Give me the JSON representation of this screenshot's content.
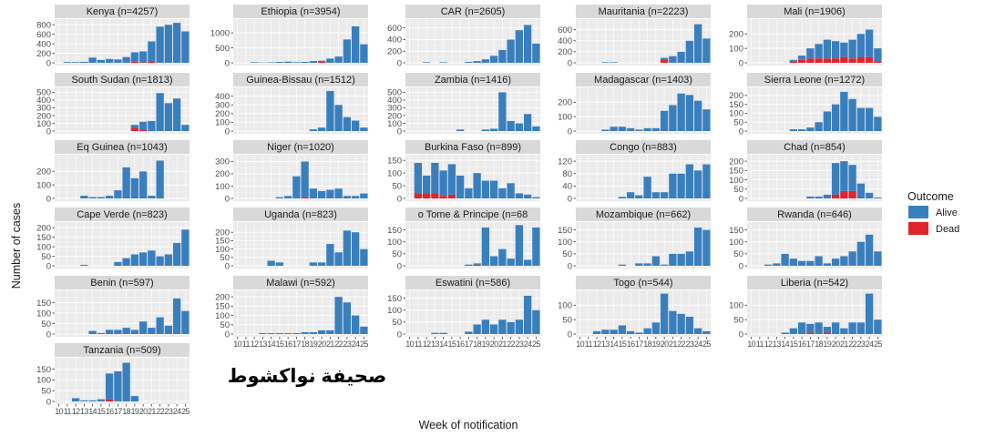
{
  "chart_data": {
    "type": "bar",
    "stacked": true,
    "xlabel": "Week of notification",
    "ylabel": "Number of cases",
    "legend": {
      "title": "Outcome",
      "placement": "right",
      "entries": [
        {
          "name": "Alive",
          "color": "#3a7fbd"
        },
        {
          "name": "Dead",
          "color": "#e0242b"
        }
      ]
    },
    "x_tick_labels": [
      "10",
      "11",
      "12",
      "13",
      "14",
      "15",
      "16",
      "17",
      "18",
      "19",
      "20",
      "21",
      "22",
      "23",
      "24",
      "25"
    ],
    "grid": true,
    "watermark": "صحيفة نواكشوط",
    "panels": [
      {
        "title": "Kenya (n=4257)",
        "yticks": [
          0,
          200,
          400,
          600,
          800
        ],
        "ymax": 880,
        "alive": [
          0,
          15,
          15,
          20,
          110,
          60,
          80,
          70,
          120,
          200,
          230,
          420,
          760,
          800,
          840,
          660
        ],
        "dead": [
          0,
          0,
          0,
          0,
          0,
          0,
          0,
          0,
          0,
          20,
          10,
          30,
          0,
          0,
          0,
          0
        ]
      },
      {
        "title": "Ethiopia (n=3954)",
        "yticks": [
          0,
          500,
          1000
        ],
        "ymax": 1400,
        "alive": [
          0,
          0,
          20,
          10,
          15,
          30,
          40,
          20,
          30,
          60,
          40,
          140,
          210,
          780,
          1220,
          620
        ],
        "dead": [
          0,
          0,
          0,
          0,
          0,
          0,
          0,
          0,
          0,
          0,
          30,
          0,
          0,
          0,
          0,
          0
        ]
      },
      {
        "title": "CAR (n=2605)",
        "yticks": [
          0,
          200,
          400,
          600
        ],
        "ymax": 720,
        "alive": [
          0,
          0,
          10,
          0,
          10,
          0,
          0,
          15,
          30,
          60,
          120,
          220,
          400,
          560,
          650,
          330
        ],
        "dead": [
          0,
          0,
          0,
          0,
          0,
          0,
          0,
          0,
          0,
          0,
          0,
          0,
          0,
          0,
          0,
          0
        ]
      },
      {
        "title": "Mauritania (n=2223)",
        "yticks": [
          0,
          200,
          400,
          600
        ],
        "ymax": 760,
        "alive": [
          0,
          0,
          0,
          10,
          10,
          0,
          0,
          0,
          0,
          0,
          30,
          120,
          200,
          400,
          700,
          440
        ],
        "dead": [
          0,
          0,
          0,
          0,
          0,
          0,
          0,
          0,
          0,
          0,
          60,
          0,
          0,
          0,
          0,
          0
        ]
      },
      {
        "title": "Mali (n=1906)",
        "yticks": [
          0,
          100,
          200
        ],
        "ymax": 290,
        "alive": [
          0,
          0,
          0,
          0,
          0,
          10,
          30,
          70,
          100,
          130,
          120,
          100,
          130,
          160,
          190,
          90
        ],
        "dead": [
          0,
          0,
          0,
          0,
          0,
          10,
          20,
          30,
          30,
          30,
          30,
          40,
          30,
          40,
          40,
          10
        ]
      },
      {
        "title": "South Sudan (n=1813)",
        "yticks": [
          0,
          100,
          200,
          300,
          400,
          500
        ],
        "ymax": 540,
        "alive": [
          0,
          0,
          0,
          0,
          0,
          0,
          0,
          0,
          0,
          40,
          100,
          130,
          490,
          360,
          420,
          80
        ],
        "dead": [
          0,
          0,
          0,
          0,
          0,
          0,
          0,
          0,
          0,
          40,
          20,
          0,
          0,
          0,
          0,
          0
        ]
      },
      {
        "title": "Guinea-Bissau (n=1512)",
        "yticks": [
          0,
          100,
          200,
          300,
          400
        ],
        "ymax": 480,
        "alive": [
          0,
          0,
          0,
          0,
          0,
          0,
          0,
          0,
          0,
          20,
          40,
          460,
          300,
          160,
          120,
          40
        ],
        "dead": [
          0,
          0,
          0,
          0,
          0,
          0,
          0,
          0,
          0,
          0,
          0,
          0,
          0,
          0,
          0,
          0
        ]
      },
      {
        "title": "Zambia (n=1416)",
        "yticks": [
          0,
          100,
          200,
          300,
          400,
          500
        ],
        "ymax": 540,
        "alive": [
          0,
          0,
          0,
          0,
          0,
          0,
          20,
          0,
          0,
          20,
          30,
          500,
          130,
          100,
          220,
          60
        ],
        "dead": [
          0,
          0,
          0,
          0,
          0,
          0,
          0,
          0,
          0,
          0,
          0,
          0,
          0,
          0,
          0,
          0
        ]
      },
      {
        "title": "Madagascar (n=1403)",
        "yticks": [
          0,
          100,
          200
        ],
        "ymax": 290,
        "alive": [
          0,
          0,
          0,
          10,
          30,
          30,
          20,
          10,
          20,
          20,
          140,
          180,
          260,
          250,
          210,
          150
        ],
        "dead": [
          0,
          0,
          0,
          0,
          0,
          0,
          0,
          0,
          0,
          0,
          0,
          0,
          0,
          0,
          0,
          0
        ]
      },
      {
        "title": "Sierra Leone (n=1272)",
        "yticks": [
          0,
          50,
          100,
          150,
          200
        ],
        "ymax": 235,
        "alive": [
          0,
          0,
          0,
          0,
          0,
          10,
          10,
          20,
          50,
          110,
          150,
          220,
          180,
          130,
          130,
          80
        ],
        "dead": [
          0,
          0,
          0,
          0,
          0,
          0,
          0,
          0,
          0,
          0,
          0,
          0,
          0,
          0,
          0,
          0
        ]
      },
      {
        "title": "Eq Guinea (n=1043)",
        "yticks": [
          0,
          100,
          200
        ],
        "ymax": 310,
        "alive": [
          0,
          0,
          0,
          20,
          10,
          10,
          20,
          60,
          230,
          150,
          200,
          20,
          280,
          0,
          0,
          0
        ],
        "dead": [
          0,
          0,
          0,
          0,
          0,
          0,
          0,
          0,
          0,
          0,
          0,
          0,
          0,
          0,
          0,
          0
        ]
      },
      {
        "title": "Niger (n=1020)",
        "yticks": [
          0,
          100,
          200,
          300
        ],
        "ymax": 340,
        "alive": [
          0,
          0,
          0,
          0,
          0,
          10,
          20,
          180,
          290,
          80,
          60,
          70,
          80,
          20,
          20,
          40
        ],
        "dead": [
          0,
          0,
          0,
          0,
          0,
          0,
          0,
          0,
          10,
          0,
          0,
          0,
          0,
          0,
          0,
          0
        ]
      },
      {
        "title": "Burkina Faso (n=899)",
        "yticks": [
          0,
          50,
          100,
          150
        ],
        "ymax": 165,
        "alive": [
          0,
          120,
          70,
          120,
          100,
          120,
          90,
          40,
          100,
          70,
          70,
          40,
          60,
          20,
          15,
          5
        ],
        "dead": [
          0,
          20,
          20,
          20,
          10,
          15,
          0,
          0,
          0,
          0,
          0,
          0,
          0,
          0,
          0,
          0
        ]
      },
      {
        "title": "Congo (n=883)",
        "yticks": [
          0,
          40,
          80,
          120
        ],
        "ymax": 135,
        "alive": [
          0,
          0,
          0,
          0,
          0,
          5,
          20,
          10,
          70,
          20,
          20,
          80,
          80,
          110,
          90,
          110
        ],
        "dead": [
          0,
          0,
          0,
          0,
          0,
          0,
          0,
          0,
          0,
          0,
          0,
          0,
          0,
          0,
          0,
          0
        ]
      },
      {
        "title": "Chad (n=854)",
        "yticks": [
          0,
          50,
          100,
          150,
          200
        ],
        "ymax": 225,
        "alive": [
          0,
          0,
          0,
          0,
          0,
          0,
          0,
          10,
          10,
          20,
          170,
          160,
          140,
          80,
          30,
          5
        ],
        "dead": [
          0,
          0,
          0,
          0,
          0,
          0,
          0,
          0,
          0,
          0,
          20,
          40,
          40,
          0,
          0,
          0
        ]
      },
      {
        "title": "Cape Verde (n=823)",
        "yticks": [
          0,
          50,
          100,
          150,
          200
        ],
        "ymax": 220,
        "alive": [
          0,
          0,
          0,
          5,
          0,
          0,
          0,
          20,
          40,
          60,
          70,
          80,
          50,
          60,
          120,
          190
        ],
        "dead": [
          0,
          0,
          0,
          0,
          0,
          0,
          0,
          0,
          0,
          0,
          0,
          0,
          0,
          0,
          0,
          0
        ]
      },
      {
        "title": "Uganda (n=823)",
        "yticks": [
          0,
          50,
          100,
          150,
          200
        ],
        "ymax": 250,
        "alive": [
          0,
          0,
          0,
          0,
          30,
          20,
          0,
          0,
          0,
          20,
          20,
          130,
          80,
          210,
          200,
          100
        ],
        "dead": [
          0,
          0,
          0,
          0,
          0,
          0,
          0,
          0,
          0,
          0,
          0,
          0,
          0,
          0,
          0,
          0
        ]
      },
      {
        "title": "o Tome & Principe (n=68",
        "yticks": [
          0,
          50,
          100,
          150
        ],
        "ymax": 175,
        "alive": [
          0,
          0,
          0,
          0,
          0,
          0,
          0,
          5,
          5,
          160,
          40,
          70,
          30,
          170,
          25,
          160
        ],
        "dead": [
          0,
          0,
          0,
          0,
          0,
          0,
          0,
          0,
          5,
          0,
          0,
          0,
          0,
          0,
          0,
          0
        ]
      },
      {
        "title": "Mozambique (n=662)",
        "yticks": [
          0,
          50,
          100,
          150
        ],
        "ymax": 175,
        "alive": [
          0,
          0,
          0,
          0,
          0,
          5,
          0,
          10,
          10,
          40,
          5,
          50,
          50,
          60,
          160,
          150
        ],
        "dead": [
          0,
          0,
          0,
          0,
          0,
          0,
          0,
          0,
          0,
          0,
          0,
          0,
          0,
          0,
          0,
          0
        ]
      },
      {
        "title": "Rwanda (n=646)",
        "yticks": [
          0,
          50,
          100,
          150
        ],
        "ymax": 175,
        "alive": [
          0,
          0,
          5,
          10,
          50,
          30,
          20,
          20,
          40,
          10,
          30,
          40,
          60,
          100,
          130,
          60
        ],
        "dead": [
          0,
          0,
          0,
          0,
          0,
          0,
          0,
          0,
          0,
          0,
          0,
          0,
          0,
          0,
          0,
          0
        ]
      },
      {
        "title": "Benin (n=597)",
        "yticks": [
          0,
          50,
          100,
          150
        ],
        "ymax": 200,
        "alive": [
          0,
          0,
          0,
          0,
          15,
          5,
          20,
          20,
          30,
          20,
          60,
          30,
          80,
          40,
          170,
          110
        ],
        "dead": [
          0,
          0,
          0,
          0,
          0,
          0,
          0,
          0,
          0,
          0,
          0,
          0,
          0,
          0,
          0,
          0
        ]
      },
      {
        "title": "Malawi (n=592)",
        "yticks": [
          0,
          50,
          100,
          150,
          200
        ],
        "ymax": 225,
        "alive": [
          0,
          0,
          0,
          5,
          5,
          5,
          5,
          5,
          10,
          10,
          20,
          20,
          200,
          170,
          100,
          40
        ],
        "dead": [
          0,
          0,
          0,
          0,
          0,
          0,
          0,
          0,
          0,
          0,
          0,
          0,
          0,
          0,
          0,
          0
        ]
      },
      {
        "title": "Eswatini (n=586)",
        "yticks": [
          0,
          50,
          100,
          150
        ],
        "ymax": 175,
        "alive": [
          0,
          0,
          0,
          5,
          5,
          0,
          0,
          10,
          40,
          60,
          40,
          60,
          50,
          60,
          160,
          100
        ],
        "dead": [
          0,
          0,
          0,
          0,
          0,
          0,
          0,
          0,
          0,
          0,
          0,
          0,
          0,
          0,
          0,
          0
        ]
      },
      {
        "title": "Togo (n=544)",
        "yticks": [
          0,
          50,
          100
        ],
        "ymax": 145,
        "alive": [
          0,
          0,
          10,
          15,
          15,
          30,
          10,
          5,
          20,
          40,
          140,
          80,
          70,
          60,
          20,
          10
        ],
        "dead": [
          0,
          0,
          0,
          0,
          0,
          0,
          0,
          0,
          0,
          0,
          0,
          0,
          0,
          0,
          0,
          0
        ]
      },
      {
        "title": "Liberia (n=542)",
        "yticks": [
          0,
          50,
          100
        ],
        "ymax": 145,
        "alive": [
          0,
          0,
          0,
          0,
          5,
          20,
          40,
          30,
          40,
          20,
          40,
          20,
          40,
          40,
          140,
          50
        ],
        "dead": [
          0,
          0,
          0,
          0,
          0,
          0,
          0,
          5,
          0,
          5,
          0,
          0,
          0,
          0,
          0,
          0
        ]
      },
      {
        "title": "Tanzania (n=509)",
        "yticks": [
          0,
          50,
          100,
          150
        ],
        "ymax": 195,
        "alive": [
          0,
          0,
          15,
          5,
          5,
          10,
          120,
          140,
          180,
          25,
          0,
          0,
          0,
          0,
          0,
          0
        ],
        "dead": [
          0,
          0,
          0,
          0,
          0,
          0,
          10,
          0,
          0,
          0,
          0,
          0,
          0,
          0,
          0,
          0
        ]
      }
    ]
  }
}
